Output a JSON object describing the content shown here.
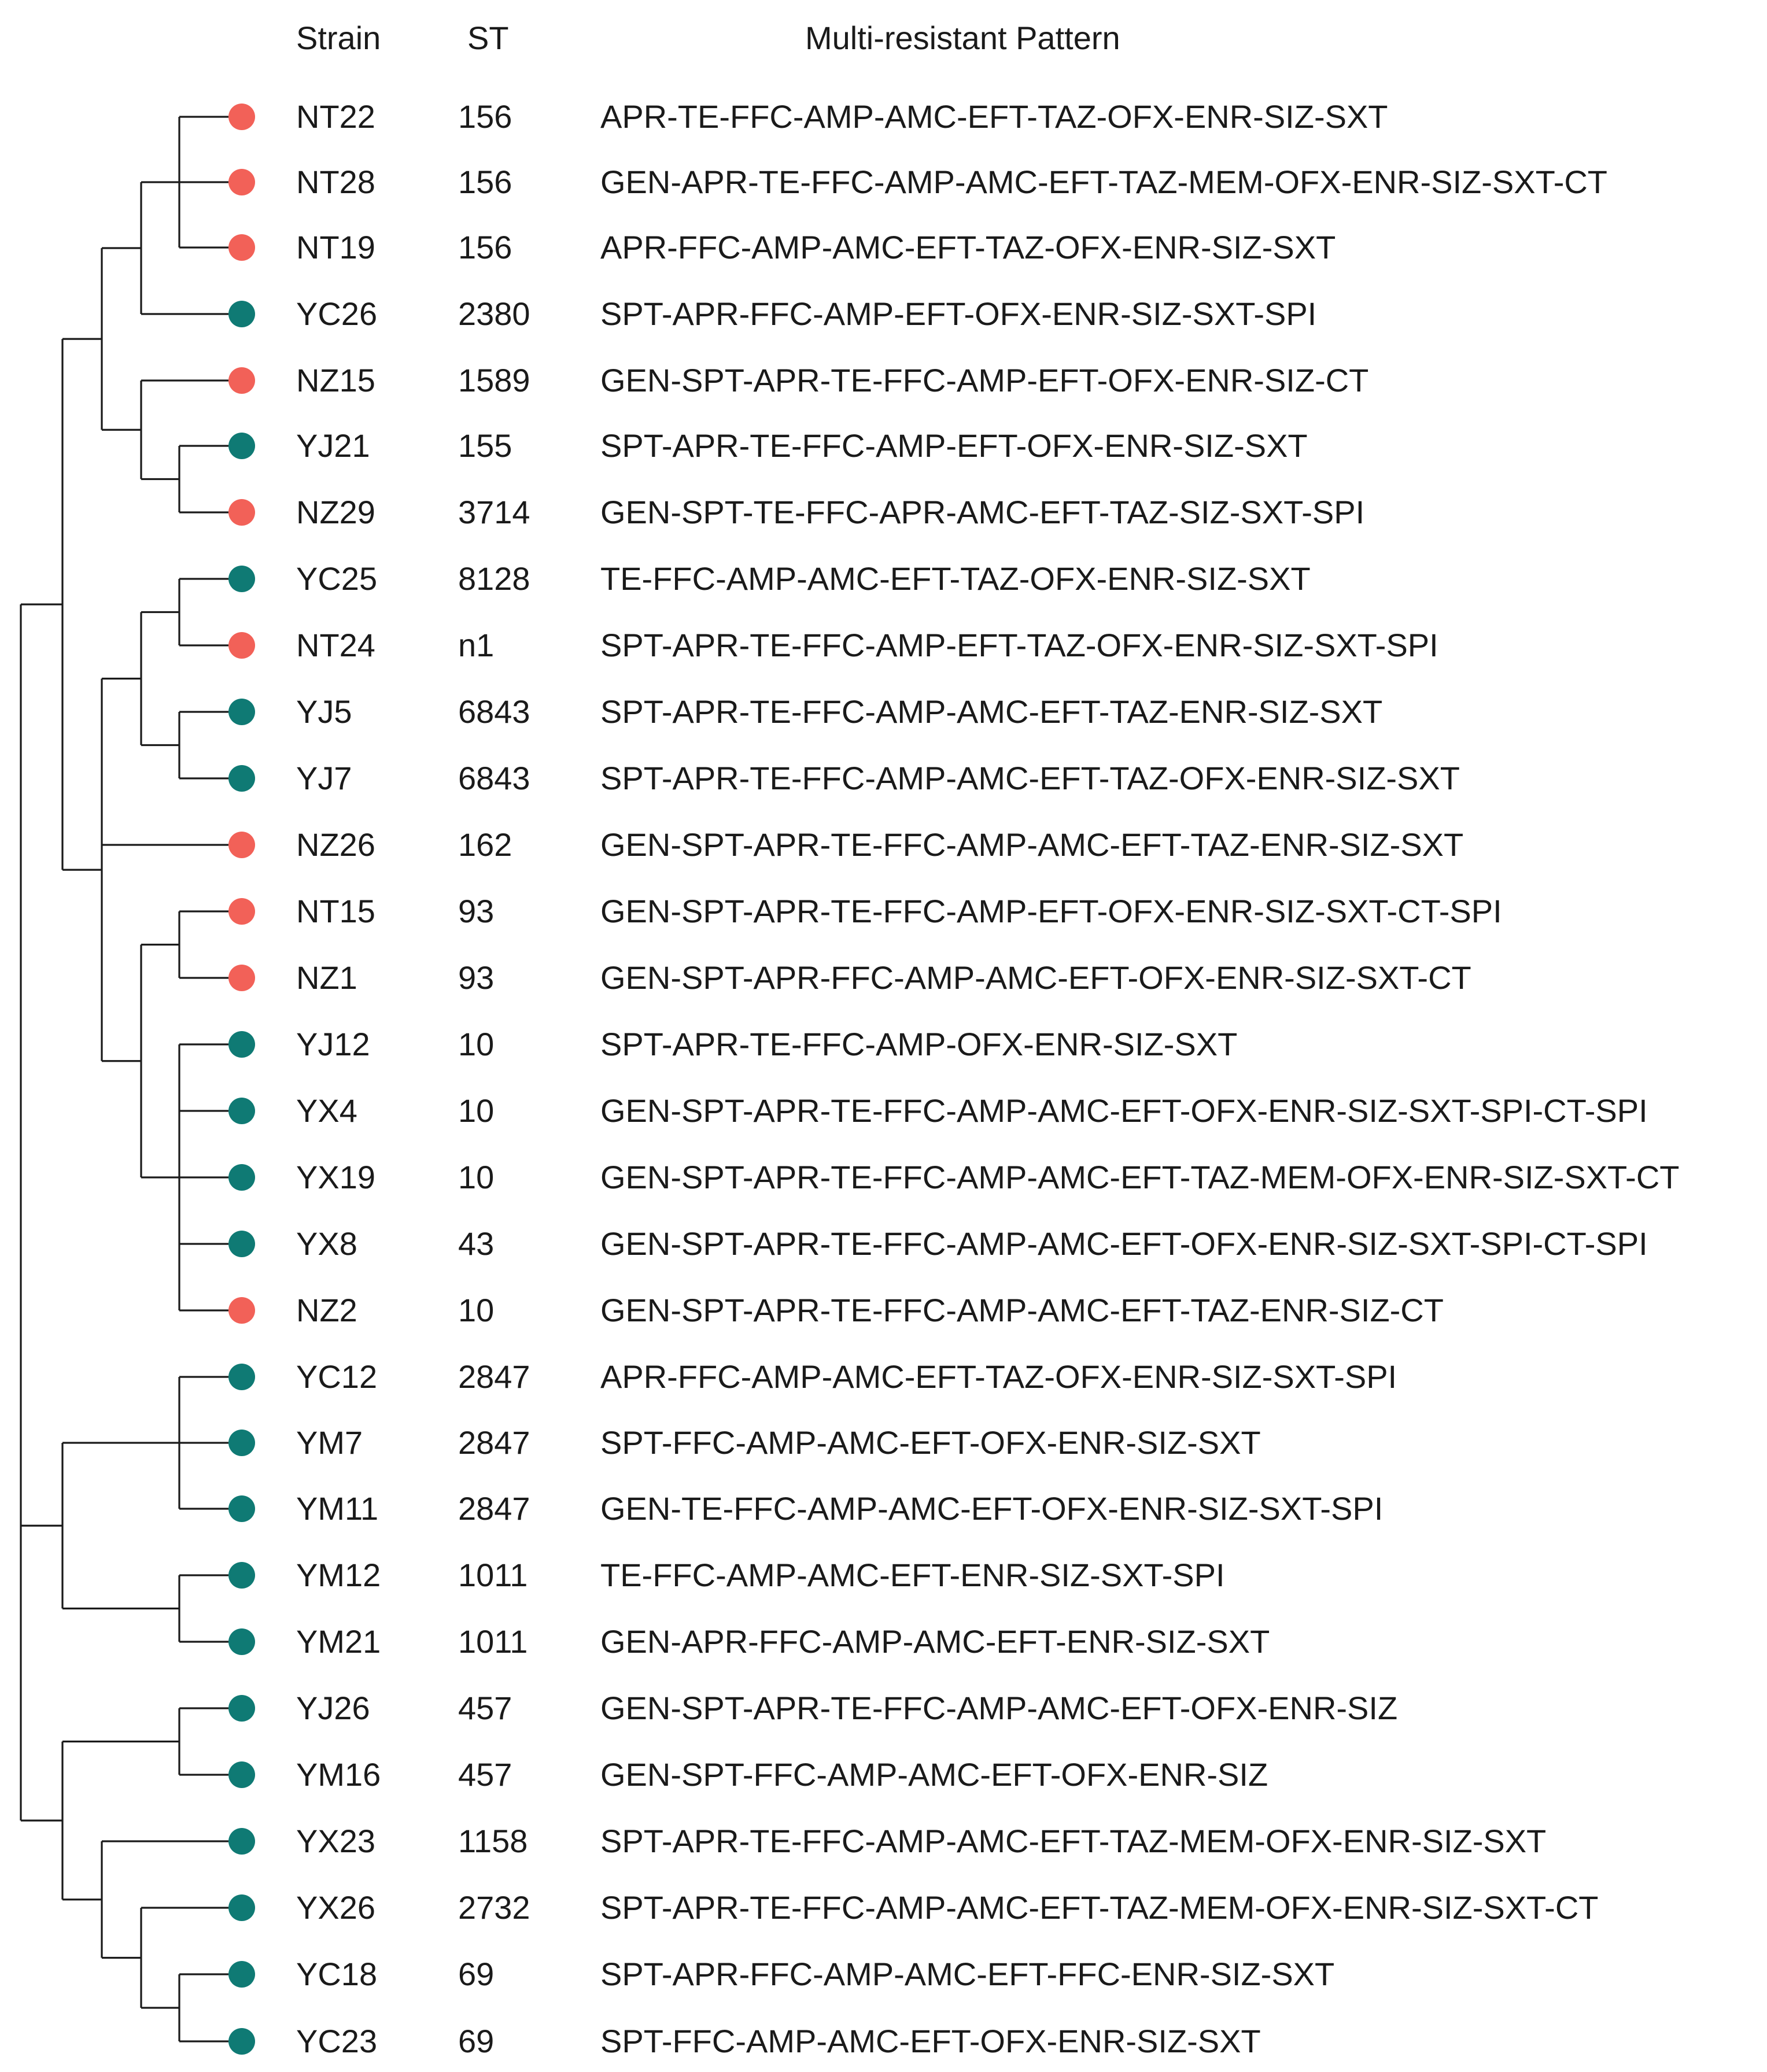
{
  "header": {
    "strain_label": "Strain",
    "st_label": "ST",
    "pattern_label": "Multi-resistant Pattern"
  },
  "legend_colors": {
    "N_group": "#f26158",
    "Y_group": "#0f7a74"
  },
  "rows": [
    {
      "strain": "NT22",
      "st": "156",
      "pattern": "APR-TE-FFC-AMP-AMC-EFT-TAZ-OFX-ENR-SIZ-SXT",
      "group": "N",
      "color": "#f26158"
    },
    {
      "strain": "NT28",
      "st": "156",
      "pattern": "GEN-APR-TE-FFC-AMP-AMC-EFT-TAZ-MEM-OFX-ENR-SIZ-SXT-CT",
      "group": "N",
      "color": "#f26158"
    },
    {
      "strain": "NT19",
      "st": "156",
      "pattern": "APR-FFC-AMP-AMC-EFT-TAZ-OFX-ENR-SIZ-SXT",
      "group": "N",
      "color": "#f26158"
    },
    {
      "strain": "YC26",
      "st": "2380",
      "pattern": "SPT-APR-FFC-AMP-EFT-OFX-ENR-SIZ-SXT-SPI",
      "group": "Y",
      "color": "#0f7a74"
    },
    {
      "strain": "NZ15",
      "st": "1589",
      "pattern": "GEN-SPT-APR-TE-FFC-AMP-EFT-OFX-ENR-SIZ-CT",
      "group": "N",
      "color": "#f26158"
    },
    {
      "strain": "YJ21",
      "st": "155",
      "pattern": "SPT-APR-TE-FFC-AMP-EFT-OFX-ENR-SIZ-SXT",
      "group": "Y",
      "color": "#0f7a74"
    },
    {
      "strain": "NZ29",
      "st": "3714",
      "pattern": "GEN-SPT-TE-FFC-APR-AMC-EFT-TAZ-SIZ-SXT-SPI",
      "group": "N",
      "color": "#f26158"
    },
    {
      "strain": "YC25",
      "st": "8128",
      "pattern": "TE-FFC-AMP-AMC-EFT-TAZ-OFX-ENR-SIZ-SXT",
      "group": "Y",
      "color": "#0f7a74"
    },
    {
      "strain": "NT24",
      "st": "n1",
      "pattern": "SPT-APR-TE-FFC-AMP-EFT-TAZ-OFX-ENR-SIZ-SXT-SPI",
      "group": "N",
      "color": "#f26158"
    },
    {
      "strain": "YJ5",
      "st": "6843",
      "pattern": "SPT-APR-TE-FFC-AMP-AMC-EFT-TAZ-ENR-SIZ-SXT",
      "group": "Y",
      "color": "#0f7a74"
    },
    {
      "strain": "YJ7",
      "st": "6843",
      "pattern": "SPT-APR-TE-FFC-AMP-AMC-EFT-TAZ-OFX-ENR-SIZ-SXT",
      "group": "Y",
      "color": "#0f7a74"
    },
    {
      "strain": "NZ26",
      "st": "162",
      "pattern": "GEN-SPT-APR-TE-FFC-AMP-AMC-EFT-TAZ-ENR-SIZ-SXT",
      "group": "N",
      "color": "#f26158"
    },
    {
      "strain": "NT15",
      "st": "93",
      "pattern": "GEN-SPT-APR-TE-FFC-AMP-EFT-OFX-ENR-SIZ-SXT-CT-SPI",
      "group": "N",
      "color": "#f26158"
    },
    {
      "strain": "NZ1",
      "st": "93",
      "pattern": "GEN-SPT-APR-FFC-AMP-AMC-EFT-OFX-ENR-SIZ-SXT-CT",
      "group": "N",
      "color": "#f26158"
    },
    {
      "strain": "YJ12",
      "st": "10",
      "pattern": "SPT-APR-TE-FFC-AMP-OFX-ENR-SIZ-SXT",
      "group": "Y",
      "color": "#0f7a74"
    },
    {
      "strain": "YX4",
      "st": "10",
      "pattern": "GEN-SPT-APR-TE-FFC-AMP-AMC-EFT-OFX-ENR-SIZ-SXT-SPI-CT-SPI",
      "group": "Y",
      "color": "#0f7a74"
    },
    {
      "strain": "YX19",
      "st": "10",
      "pattern": "GEN-SPT-APR-TE-FFC-AMP-AMC-EFT-TAZ-MEM-OFX-ENR-SIZ-SXT-CT",
      "group": "Y",
      "color": "#0f7a74"
    },
    {
      "strain": "YX8",
      "st": "43",
      "pattern": "GEN-SPT-APR-TE-FFC-AMP-AMC-EFT-OFX-ENR-SIZ-SXT-SPI-CT-SPI",
      "group": "Y",
      "color": "#0f7a74"
    },
    {
      "strain": "NZ2",
      "st": "10",
      "pattern": "GEN-SPT-APR-TE-FFC-AMP-AMC-EFT-TAZ-ENR-SIZ-CT",
      "group": "N",
      "color": "#f26158"
    },
    {
      "strain": "YC12",
      "st": "2847",
      "pattern": "APR-FFC-AMP-AMC-EFT-TAZ-OFX-ENR-SIZ-SXT-SPI",
      "group": "Y",
      "color": "#0f7a74"
    },
    {
      "strain": "YM7",
      "st": "2847",
      "pattern": "SPT-FFC-AMP-AMC-EFT-OFX-ENR-SIZ-SXT",
      "group": "Y",
      "color": "#0f7a74"
    },
    {
      "strain": "YM11",
      "st": "2847",
      "pattern": "GEN-TE-FFC-AMP-AMC-EFT-OFX-ENR-SIZ-SXT-SPI",
      "group": "Y",
      "color": "#0f7a74"
    },
    {
      "strain": "YM12",
      "st": "1011",
      "pattern": "TE-FFC-AMP-AMC-EFT-ENR-SIZ-SXT-SPI",
      "group": "Y",
      "color": "#0f7a74"
    },
    {
      "strain": "YM21",
      "st": "1011",
      "pattern": "GEN-APR-FFC-AMP-AMC-EFT-ENR-SIZ-SXT",
      "group": "Y",
      "color": "#0f7a74"
    },
    {
      "strain": "YJ26",
      "st": "457",
      "pattern": "GEN-SPT-APR-TE-FFC-AMP-AMC-EFT-OFX-ENR-SIZ",
      "group": "Y",
      "color": "#0f7a74"
    },
    {
      "strain": "YM16",
      "st": "457",
      "pattern": "GEN-SPT-FFC-AMP-AMC-EFT-OFX-ENR-SIZ",
      "group": "Y",
      "color": "#0f7a74"
    },
    {
      "strain": "YX23",
      "st": "1158",
      "pattern": "SPT-APR-TE-FFC-AMP-AMC-EFT-TAZ-MEM-OFX-ENR-SIZ-SXT",
      "group": "Y",
      "color": "#0f7a74"
    },
    {
      "strain": "YX26",
      "st": "2732",
      "pattern": "SPT-APR-TE-FFC-AMP-AMC-EFT-TAZ-MEM-OFX-ENR-SIZ-SXT-CT",
      "group": "Y",
      "color": "#0f7a74"
    },
    {
      "strain": "YC18",
      "st": "69",
      "pattern": "SPT-APR-FFC-AMP-AMC-EFT-FFC-ENR-SIZ-SXT",
      "group": "Y",
      "color": "#0f7a74"
    },
    {
      "strain": "YC23",
      "st": "69",
      "pattern": "SPT-FFC-AMP-AMC-EFT-OFX-ENR-SIZ-SXT",
      "group": "Y",
      "color": "#0f7a74"
    }
  ]
}
